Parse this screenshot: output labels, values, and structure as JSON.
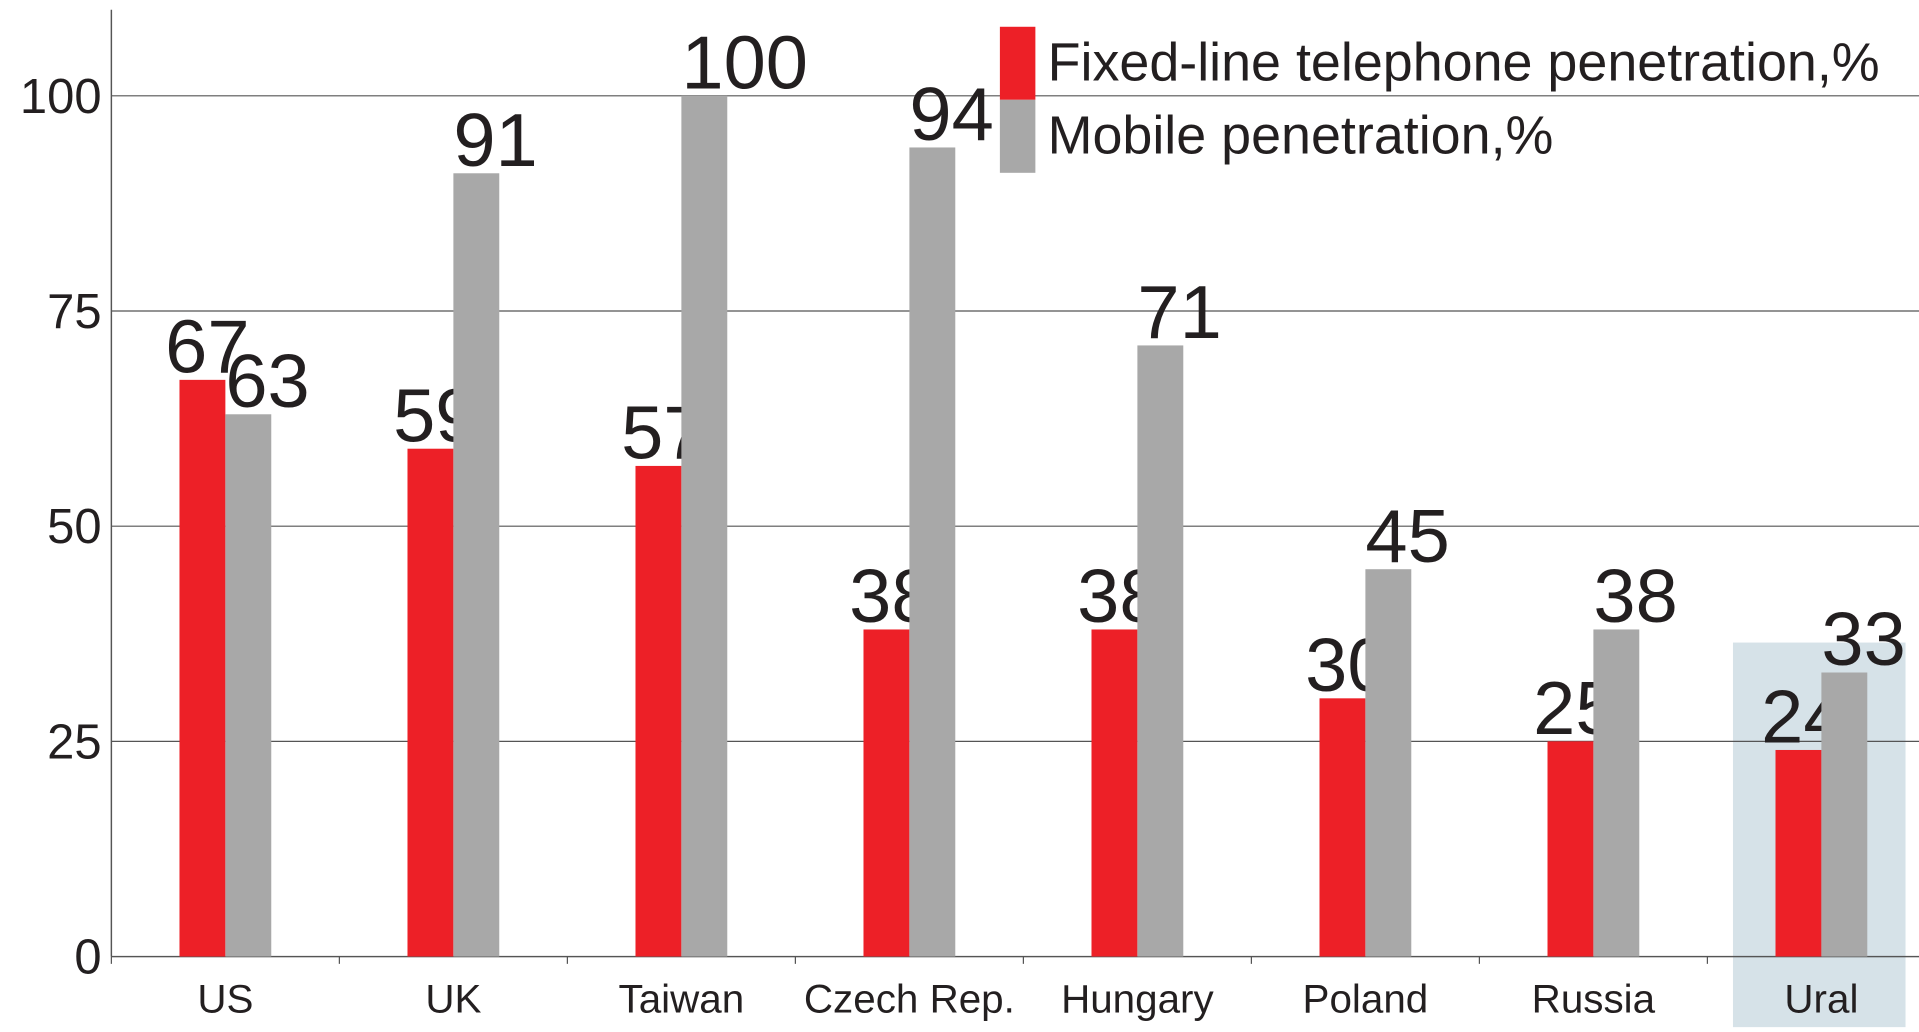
{
  "chart_data": {
    "type": "bar",
    "categories": [
      "US",
      "UK",
      "Taiwan",
      "Czech Rep.",
      "Hungary",
      "Poland",
      "Russia",
      "Ural"
    ],
    "series": [
      {
        "name": "Fixed-line telephone penetration,%",
        "color": "#ed2027",
        "values": [
          67,
          59,
          57,
          38,
          38,
          30,
          25,
          24
        ]
      },
      {
        "name": "Mobile penetration,%",
        "color": "#a8a8a8",
        "values": [
          63,
          91,
          100,
          94,
          71,
          45,
          38,
          33
        ]
      }
    ],
    "ylim": [
      0,
      110
    ],
    "yticks": [
      0,
      25,
      50,
      75,
      100
    ],
    "grid": true,
    "legend": "top-right"
  }
}
